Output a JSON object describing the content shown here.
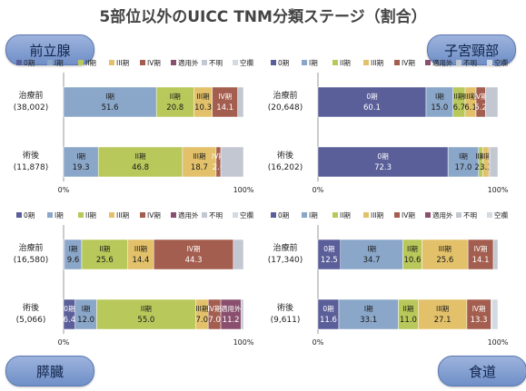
{
  "page": {
    "title": "5部位以外のUICC TNM分類ステージ（割合）",
    "organs": {
      "prostate": "前立腺",
      "cervix": "子宮頸部",
      "pancreas": "膵臓",
      "esophagus": "食道"
    }
  },
  "legend_labels": [
    "0期",
    "I期",
    "II期",
    "III期",
    "IV期",
    "適用外",
    "不明",
    "空欄"
  ],
  "colors": [
    "#5a5e99",
    "#8aa6c8",
    "#b8c85a",
    "#e2c16a",
    "#a45e4f",
    "#8a4f6e",
    "#c2c7d1",
    "#d3dae2"
  ],
  "chart_data": [
    {
      "type": "bar",
      "title": "前立腺",
      "orientation": "horizontal",
      "stacked": true,
      "categories": [
        "治療前\n(38,002)",
        "術後\n(11,878)"
      ],
      "xlim": [
        0,
        100
      ],
      "x_ticks": [
        "0%",
        "100%"
      ],
      "series": [
        {
          "name": "0期",
          "values": [
            0,
            0
          ]
        },
        {
          "name": "I期",
          "values": [
            51.6,
            19.3
          ]
        },
        {
          "name": "II期",
          "values": [
            20.8,
            46.8
          ]
        },
        {
          "name": "III期",
          "values": [
            10.3,
            18.7
          ]
        },
        {
          "name": "IV期",
          "values": [
            14.1,
            2.6
          ]
        },
        {
          "name": "適用外",
          "values": [
            0,
            0
          ]
        },
        {
          "name": "不明",
          "values": [
            3.2,
            12.6
          ]
        },
        {
          "name": "空欄",
          "values": [
            0,
            0
          ]
        }
      ]
    },
    {
      "type": "bar",
      "title": "子宮頸部",
      "orientation": "horizontal",
      "stacked": true,
      "categories": [
        "治療前\n(20,648)",
        "術後\n(16,202)"
      ],
      "xlim": [
        0,
        100
      ],
      "x_ticks": [
        "0%",
        "100%"
      ],
      "series": [
        {
          "name": "0期",
          "values": [
            60.1,
            72.3
          ]
        },
        {
          "name": "I期",
          "values": [
            15.0,
            17.0
          ]
        },
        {
          "name": "II期",
          "values": [
            6.7,
            2.4
          ]
        },
        {
          "name": "III期",
          "values": [
            6.1,
            3.3
          ]
        },
        {
          "name": "IV期",
          "values": [
            5.2,
            0.5
          ]
        },
        {
          "name": "適用外",
          "values": [
            0,
            0
          ]
        },
        {
          "name": "不明",
          "values": [
            6.9,
            4.5
          ]
        },
        {
          "name": "空欄",
          "values": [
            0,
            0
          ]
        }
      ]
    },
    {
      "type": "bar",
      "title": "膵臓",
      "orientation": "horizontal",
      "stacked": true,
      "categories": [
        "治療前\n(16,580)",
        "術後\n(5,066)"
      ],
      "xlim": [
        0,
        100
      ],
      "x_ticks": [
        "0%",
        "100%"
      ],
      "series": [
        {
          "name": "0期",
          "values": [
            0.5,
            6.4
          ]
        },
        {
          "name": "I期",
          "values": [
            9.6,
            12.0
          ]
        },
        {
          "name": "II期",
          "values": [
            25.6,
            55.0
          ]
        },
        {
          "name": "III期",
          "values": [
            14.4,
            7.0
          ]
        },
        {
          "name": "IV期",
          "values": [
            44.3,
            7.0
          ]
        },
        {
          "name": "適用外",
          "values": [
            0,
            11.2
          ]
        },
        {
          "name": "不明",
          "values": [
            5.6,
            1.4
          ]
        },
        {
          "name": "空欄",
          "values": [
            0,
            0
          ]
        }
      ]
    },
    {
      "type": "bar",
      "title": "食道",
      "orientation": "horizontal",
      "stacked": true,
      "categories": [
        "治療前\n(17,340)",
        "術後\n(9,611)"
      ],
      "xlim": [
        0,
        100
      ],
      "x_ticks": [
        "0%",
        "100%"
      ],
      "series": [
        {
          "name": "0期",
          "values": [
            12.5,
            11.6
          ]
        },
        {
          "name": "I期",
          "values": [
            34.7,
            33.1
          ]
        },
        {
          "name": "II期",
          "values": [
            10.6,
            11.0
          ]
        },
        {
          "name": "III期",
          "values": [
            25.6,
            27.1
          ]
        },
        {
          "name": "IV期",
          "values": [
            14.1,
            13.3
          ]
        },
        {
          "name": "適用外",
          "values": [
            0,
            0
          ]
        },
        {
          "name": "不明",
          "values": [
            2.5,
            0.5
          ]
        },
        {
          "name": "空欄",
          "values": [
            0,
            3.4
          ]
        }
      ]
    }
  ]
}
